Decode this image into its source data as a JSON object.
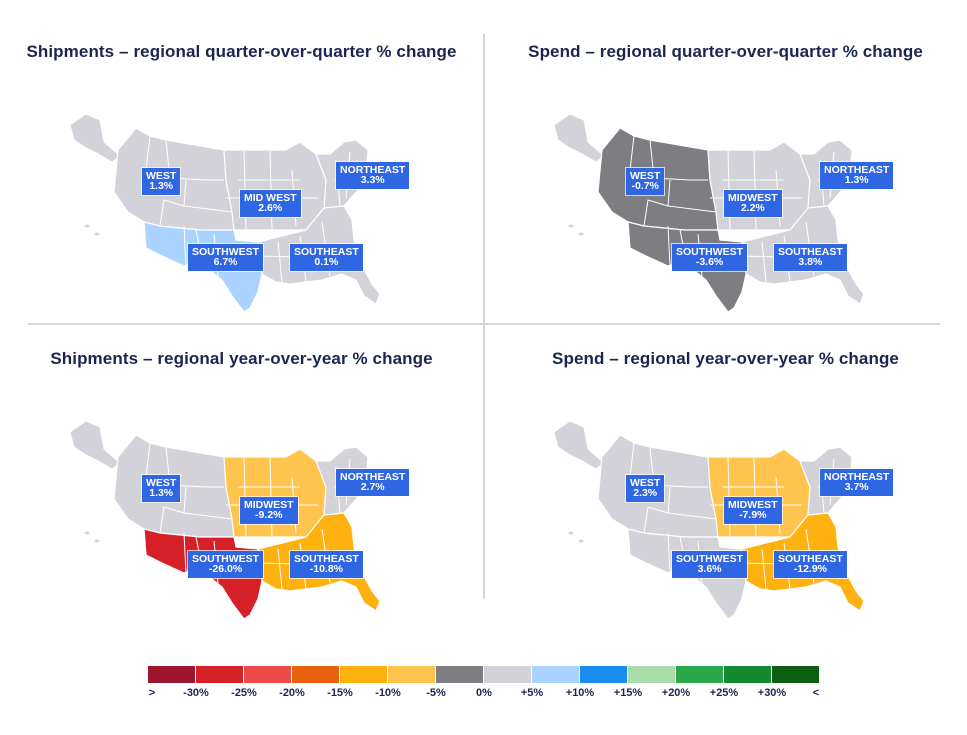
{
  "colors": {
    "title": "#1b2550",
    "label_bg": "#2f66e3",
    "neutral": "#d2d2d8",
    "state_border": "#ffffff"
  },
  "panels": [
    {
      "id": "ship-qoq",
      "title": "Shipments – regional quarter-over-quarter % change",
      "regions": {
        "west": {
          "name": "WEST",
          "value": "1.3%",
          "color": "#d2d2d8"
        },
        "midwest": {
          "name": "MID WEST",
          "value": "2.6%",
          "color": "#d2d2d8"
        },
        "northeast": {
          "name": "NORTHEAST",
          "value": "3.3%",
          "color": "#d2d2d8"
        },
        "southwest": {
          "name": "SOUTHWEST",
          "value": "6.7%",
          "color": "#aad4ff"
        },
        "southeast": {
          "name": "SOUTHEAST",
          "value": "0.1%",
          "color": "#d2d2d8"
        }
      }
    },
    {
      "id": "spend-qoq",
      "title": "Spend – regional quarter-over-quarter % change",
      "regions": {
        "west": {
          "name": "WEST",
          "value": "-0.7%",
          "color": "#7d7d82"
        },
        "midwest": {
          "name": "MIDWEST",
          "value": "2.2%",
          "color": "#d2d2d8"
        },
        "northeast": {
          "name": "NORTHEAST",
          "value": "1.3%",
          "color": "#d2d2d8"
        },
        "southwest": {
          "name": "SOUTHWEST",
          "value": "-3.6%",
          "color": "#7d7d82"
        },
        "southeast": {
          "name": "SOUTHEAST",
          "value": "3.8%",
          "color": "#d2d2d8"
        }
      }
    },
    {
      "id": "ship-yoy",
      "title": "Shipments – regional year-over-year % change",
      "regions": {
        "west": {
          "name": "WEST",
          "value": "1.3%",
          "color": "#d2d2d8"
        },
        "midwest": {
          "name": "MIDWEST",
          "value": "-9.2%",
          "color": "#ffc44d"
        },
        "northeast": {
          "name": "NORTHEAST",
          "value": "2.7%",
          "color": "#d2d2d8"
        },
        "southwest": {
          "name": "SOUTHWEST",
          "value": "-26.0%",
          "color": "#d42026"
        },
        "southeast": {
          "name": "SOUTHEAST",
          "value": "-10.8%",
          "color": "#ffb10f"
        }
      }
    },
    {
      "id": "spend-yoy",
      "title": "Spend – regional year-over-year % change",
      "regions": {
        "west": {
          "name": "WEST",
          "value": "2.3%",
          "color": "#d2d2d8"
        },
        "midwest": {
          "name": "MIDWEST",
          "value": "-7.9%",
          "color": "#ffc44d"
        },
        "northeast": {
          "name": "NORTHEAST",
          "value": "3.7%",
          "color": "#d2d2d8"
        },
        "southwest": {
          "name": "SOUTHWEST",
          "value": "3.6%",
          "color": "#d2d2d8"
        },
        "southeast": {
          "name": "SOUTHEAST",
          "value": "-12.9%",
          "color": "#ffb10f"
        }
      }
    }
  ],
  "legend": {
    "swatches": [
      "#a0152e",
      "#d42026",
      "#ee4a4a",
      "#e8610e",
      "#ffb10f",
      "#ffc44d",
      "#7d7d82",
      "#d2d2d8",
      "#aad4ff",
      "#1a8cf0",
      "#a8dca8",
      "#2aa84a",
      "#138a2e",
      "#0c5e10"
    ],
    "ticks": [
      ">",
      "-30%",
      "-25%",
      "-20%",
      "-15%",
      "-10%",
      "-5%",
      "0%",
      "+5%",
      "+10%",
      "+15%",
      "+20%",
      "+25%",
      "+30%",
      "<"
    ]
  }
}
